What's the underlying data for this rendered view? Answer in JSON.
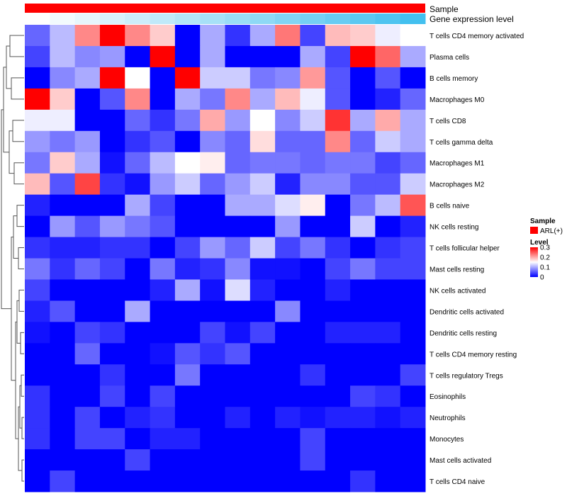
{
  "chart_data": {
    "type": "heatmap",
    "title": "",
    "column_annotations": [
      {
        "name": "Sample",
        "color": "#ff0000"
      },
      {
        "name": "Gene expression level",
        "colors": [
          "#ffffff",
          "#f2fafd",
          "#e6f6fc",
          "#d9f1fb",
          "#cdedfa",
          "#c0e9f9",
          "#b3e5f8",
          "#a7e1f7",
          "#9addf6",
          "#8ed9f5",
          "#81d4f4",
          "#75d0f3",
          "#68ccf2",
          "#5cc8f1",
          "#4fc4f0",
          "#43c0ef"
        ]
      }
    ],
    "row_labels": [
      "T cells CD4 memory activated",
      "Plasma cells",
      "B cells memory",
      "Macrophages M0",
      "T cells CD8",
      "T cells gamma delta",
      "Macrophages M1",
      "Macrophages M2",
      "B cells naive",
      "NK cells resting",
      "T cells follicular helper",
      "Mast cells resting",
      "NK cells activated",
      "Dendritic cells activated",
      "Dendritic cells resting",
      "T cells CD4 memory resting",
      "T cells regulatory  Tregs",
      "Eosinophils",
      "Neutrophils",
      "Monocytes",
      "Mast cells activated",
      "T cells CD4 naive"
    ],
    "n_columns": 16,
    "values": [
      [
        0.06,
        0.11,
        0.22,
        0.3,
        0.22,
        0.18,
        0.0,
        0.1,
        0.03,
        0.1,
        0.23,
        0.04,
        0.19,
        0.18,
        0.14,
        0.15
      ],
      [
        0.04,
        0.11,
        0.08,
        0.09,
        0.0,
        0.3,
        0.0,
        0.1,
        0.0,
        0.0,
        0.0,
        0.1,
        0.04,
        0.3,
        0.24,
        0.1
      ],
      [
        0.0,
        0.08,
        0.1,
        0.3,
        0.15,
        0.0,
        0.3,
        0.12,
        0.12,
        0.07,
        0.08,
        0.21,
        0.05,
        0.0,
        0.05,
        0.0
      ],
      [
        0.3,
        0.18,
        0.0,
        0.05,
        0.22,
        0.0,
        0.1,
        0.07,
        0.22,
        0.1,
        0.19,
        0.14,
        0.05,
        0.0,
        0.02,
        0.06
      ],
      [
        0.14,
        0.14,
        0.0,
        0.0,
        0.06,
        0.03,
        0.07,
        0.2,
        0.09,
        0.15,
        0.08,
        0.12,
        0.27,
        0.1,
        0.2,
        0.1
      ],
      [
        0.09,
        0.07,
        0.09,
        0.0,
        0.03,
        0.05,
        0.0,
        0.08,
        0.06,
        0.17,
        0.06,
        0.06,
        0.22,
        0.06,
        0.12,
        0.1
      ],
      [
        0.07,
        0.18,
        0.1,
        0.01,
        0.06,
        0.11,
        0.15,
        0.16,
        0.06,
        0.07,
        0.07,
        0.06,
        0.07,
        0.07,
        0.04,
        0.06
      ],
      [
        0.19,
        0.05,
        0.26,
        0.03,
        0.01,
        0.09,
        0.12,
        0.06,
        0.09,
        0.12,
        0.02,
        0.08,
        0.08,
        0.05,
        0.05,
        0.12
      ],
      [
        0.02,
        0.0,
        0.0,
        0.0,
        0.1,
        0.04,
        0.0,
        0.0,
        0.1,
        0.1,
        0.13,
        0.16,
        0.0,
        0.07,
        0.11,
        0.25
      ],
      [
        0.0,
        0.09,
        0.05,
        0.09,
        0.07,
        0.05,
        0.0,
        0.0,
        0.0,
        0.0,
        0.09,
        0.0,
        0.0,
        0.12,
        0.0,
        0.02
      ],
      [
        0.03,
        0.02,
        0.02,
        0.03,
        0.03,
        0.0,
        0.04,
        0.09,
        0.06,
        0.12,
        0.04,
        0.07,
        0.03,
        0.0,
        0.03,
        0.04
      ],
      [
        0.07,
        0.03,
        0.06,
        0.04,
        0.0,
        0.07,
        0.02,
        0.03,
        0.08,
        0.01,
        0.01,
        0.0,
        0.04,
        0.07,
        0.04,
        0.04
      ],
      [
        0.04,
        0.0,
        0.0,
        0.0,
        0.0,
        0.02,
        0.1,
        0.01,
        0.13,
        0.02,
        0.0,
        0.0,
        0.02,
        0.0,
        0.0,
        0.0
      ],
      [
        0.02,
        0.05,
        0.0,
        0.0,
        0.1,
        0.0,
        0.0,
        0.0,
        0.0,
        0.0,
        0.08,
        0.0,
        0.0,
        0.0,
        0.0,
        0.0
      ],
      [
        0.01,
        0.0,
        0.04,
        0.03,
        0.0,
        0.0,
        0.0,
        0.04,
        0.01,
        0.04,
        0.0,
        0.0,
        0.02,
        0.02,
        0.02,
        0.0
      ],
      [
        0.0,
        0.0,
        0.06,
        0.0,
        0.0,
        0.01,
        0.05,
        0.03,
        0.05,
        0.0,
        0.0,
        0.0,
        0.0,
        0.0,
        0.0,
        0.0
      ],
      [
        0.0,
        0.0,
        0.0,
        0.03,
        0.0,
        0.0,
        0.07,
        0.0,
        0.0,
        0.0,
        0.0,
        0.03,
        0.0,
        0.0,
        0.0,
        0.04
      ],
      [
        0.03,
        0.0,
        0.0,
        0.04,
        0.0,
        0.04,
        0.0,
        0.0,
        0.0,
        0.0,
        0.0,
        0.0,
        0.0,
        0.04,
        0.03,
        0.0
      ],
      [
        0.03,
        0.0,
        0.04,
        0.0,
        0.02,
        0.03,
        0.0,
        0.0,
        0.02,
        0.0,
        0.02,
        0.01,
        0.02,
        0.02,
        0.01,
        0.02
      ],
      [
        0.03,
        0.0,
        0.04,
        0.04,
        0.0,
        0.02,
        0.02,
        0.0,
        0.0,
        0.0,
        0.0,
        0.04,
        0.0,
        0.0,
        0.0,
        0.0
      ],
      [
        0.0,
        0.0,
        0.0,
        0.0,
        0.04,
        0.0,
        0.0,
        0.0,
        0.0,
        0.0,
        0.0,
        0.04,
        0.0,
        0.0,
        0.0,
        0.0
      ],
      [
        0.0,
        0.04,
        0.0,
        0.0,
        0.0,
        0.0,
        0.0,
        0.0,
        0.0,
        0.0,
        0.0,
        0.0,
        0.0,
        0.03,
        0.0,
        0.0
      ]
    ],
    "color_scale": {
      "min": 0,
      "max": 0.3,
      "low": "#0000ff",
      "mid": "#ffffff",
      "high": "#ff0000",
      "mid_value": 0.15
    },
    "legends": [
      {
        "title": "Sample",
        "entries": [
          {
            "label": "ARL(+)",
            "color": "#ff0000"
          }
        ]
      },
      {
        "title": "Level",
        "ticks": [
          "0.3",
          "0.2",
          "0.1",
          "0"
        ],
        "tick_values": [
          0.3,
          0.2,
          0.1,
          0
        ]
      }
    ],
    "dendrogram": {
      "side": "left",
      "clustered": "rows"
    }
  }
}
